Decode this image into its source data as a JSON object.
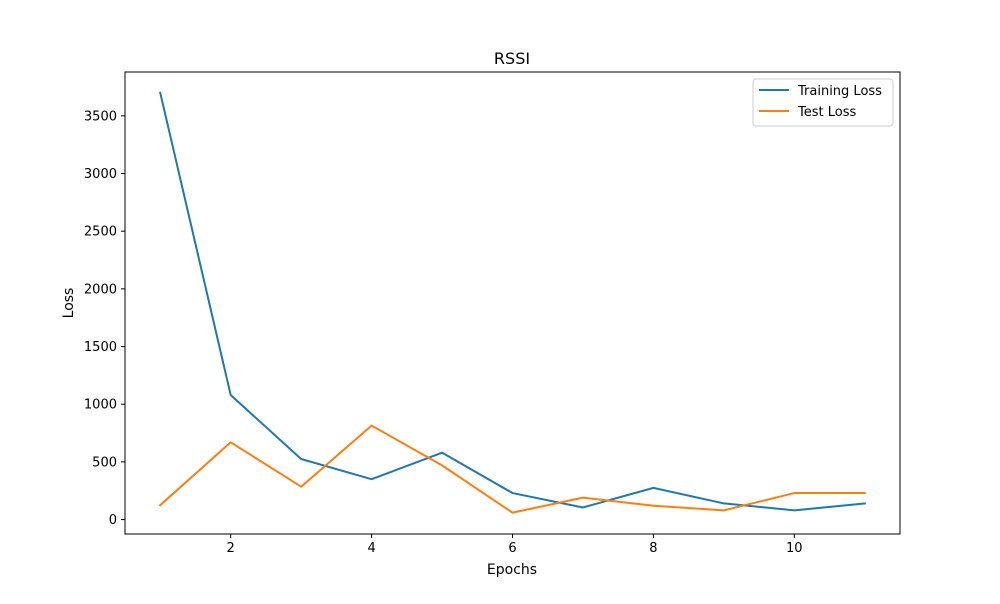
{
  "chart_data": {
    "type": "line",
    "title": "RSSI",
    "xlabel": "Epochs",
    "ylabel": "Loss",
    "xlim": [
      0.5,
      11.5
    ],
    "ylim": [
      -125,
      3880
    ],
    "xticks": [
      2,
      4,
      6,
      8,
      10
    ],
    "yticks": [
      0,
      500,
      1000,
      1500,
      2000,
      2500,
      3000,
      3500
    ],
    "grid": false,
    "legend_position": "top-right",
    "x": [
      1,
      2,
      3,
      4,
      5,
      6,
      7,
      8,
      9,
      10,
      11
    ],
    "series": [
      {
        "name": "Training Loss",
        "color": "#1f77b4",
        "values": [
          3700,
          1080,
          525,
          350,
          580,
          230,
          105,
          275,
          140,
          80,
          140
        ]
      },
      {
        "name": "Test Loss",
        "color": "#ff7f0e",
        "values": [
          125,
          670,
          285,
          815,
          470,
          60,
          190,
          120,
          80,
          230,
          230
        ]
      }
    ]
  }
}
